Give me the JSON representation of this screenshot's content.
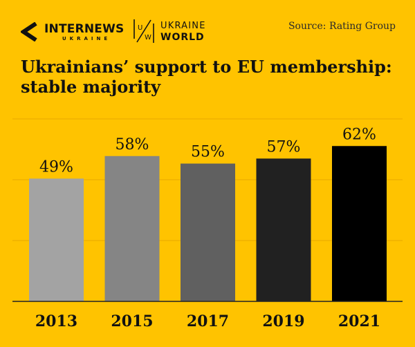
{
  "branding": {
    "internews_name": "INTERNEWS",
    "internews_sub": "UKRAINE",
    "uw_line1": "UKRAINE",
    "uw_line2": "WORLD",
    "uw_letter_u": "U",
    "uw_letter_w": "W"
  },
  "source": "Source: Rating Group",
  "title_plain": "Ukrainians’ support to ",
  "title_bold": "EU membership:",
  "title_line2": "stable majority",
  "chart_data": {
    "type": "bar",
    "title": "Ukrainians’ support to EU membership: stable majority",
    "xlabel": "",
    "ylabel": "",
    "ylim": [
      0,
      70
    ],
    "grid": true,
    "categories": [
      "2013",
      "2015",
      "2017",
      "2019",
      "2021"
    ],
    "values": [
      49,
      58,
      55,
      57,
      62
    ],
    "value_labels": [
      "49%",
      "58%",
      "55%",
      "57%",
      "62%"
    ],
    "colors": [
      "#A3A3A3",
      "#858585",
      "#606060",
      "#212121",
      "#000000"
    ]
  }
}
